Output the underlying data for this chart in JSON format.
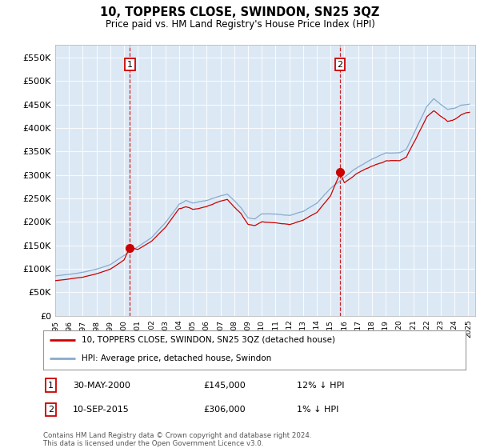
{
  "title": "10, TOPPERS CLOSE, SWINDON, SN25 3QZ",
  "subtitle": "Price paid vs. HM Land Registry's House Price Index (HPI)",
  "ylim": [
    0,
    577000
  ],
  "yticks": [
    0,
    50000,
    100000,
    150000,
    200000,
    250000,
    300000,
    350000,
    400000,
    450000,
    500000,
    550000
  ],
  "ytick_labels": [
    "£0",
    "£50K",
    "£100K",
    "£150K",
    "£200K",
    "£250K",
    "£300K",
    "£350K",
    "£400K",
    "£450K",
    "£500K",
    "£550K"
  ],
  "bg_color": "#dce9f5",
  "red_color": "#cc0000",
  "blue_color": "#88aacc",
  "transaction1": {
    "label": "1",
    "date": "30-MAY-2000",
    "price": 145000,
    "hpi_diff": "12% ↓ HPI",
    "year": 2000.42
  },
  "transaction2": {
    "label": "2",
    "date": "10-SEP-2015",
    "price": 306000,
    "hpi_diff": "1% ↓ HPI",
    "year": 2015.69
  },
  "legend_line1": "10, TOPPERS CLOSE, SWINDON, SN25 3QZ (detached house)",
  "legend_line2": "HPI: Average price, detached house, Swindon",
  "copyright": "Contains HM Land Registry data © Crown copyright and database right 2024.\nThis data is licensed under the Open Government Licence v3.0."
}
